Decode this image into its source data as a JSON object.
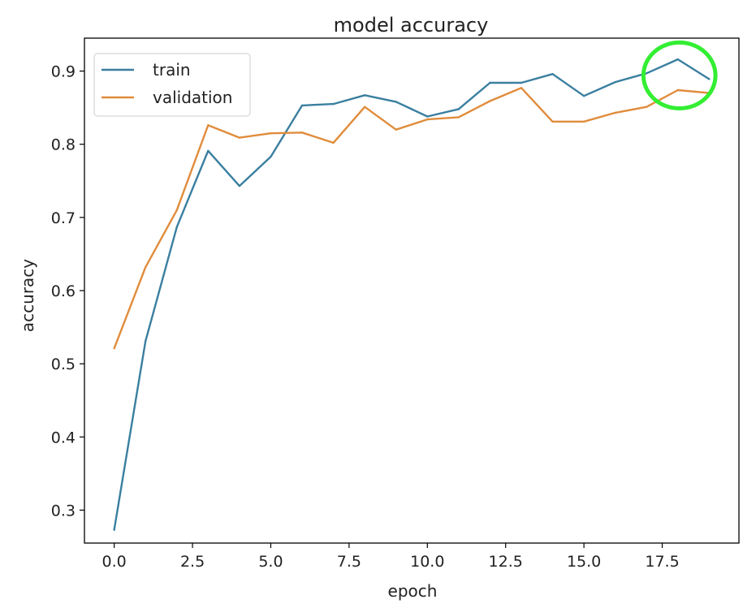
{
  "chart_data": {
    "type": "line",
    "title": "model accuracy",
    "xlabel": "epoch",
    "ylabel": "accuracy",
    "xlim": [
      -0.95,
      19.95
    ],
    "ylim": [
      0.255,
      0.945
    ],
    "x_ticks": [
      0.0,
      2.5,
      5.0,
      7.5,
      10.0,
      12.5,
      15.0,
      17.5
    ],
    "x_tick_labels": [
      "0.0",
      "2.5",
      "5.0",
      "7.5",
      "10.0",
      "12.5",
      "15.0",
      "17.5"
    ],
    "y_ticks": [
      0.3,
      0.4,
      0.5,
      0.6,
      0.7,
      0.8,
      0.9
    ],
    "y_tick_labels": [
      "0.3",
      "0.4",
      "0.5",
      "0.6",
      "0.7",
      "0.8",
      "0.9"
    ],
    "legend_position": "top-left",
    "grid": false,
    "x": [
      0,
      1,
      2,
      3,
      4,
      5,
      6,
      7,
      8,
      9,
      10,
      11,
      12,
      13,
      14,
      15,
      16,
      17,
      18,
      19
    ],
    "series": [
      {
        "name": "train",
        "color": "#3a7fa0",
        "values": [
          0.273,
          0.531,
          0.687,
          0.791,
          0.743,
          0.783,
          0.853,
          0.855,
          0.867,
          0.858,
          0.838,
          0.848,
          0.884,
          0.884,
          0.896,
          0.866,
          0.885,
          0.897,
          0.916,
          0.889
        ]
      },
      {
        "name": "validation",
        "color": "#e08c3c",
        "values": [
          0.521,
          0.632,
          0.71,
          0.826,
          0.809,
          0.815,
          0.816,
          0.802,
          0.851,
          0.82,
          0.834,
          0.837,
          0.859,
          0.877,
          0.831,
          0.831,
          0.843,
          0.851,
          0.874,
          0.87
        ]
      }
    ],
    "annotation": {
      "shape": "ellipse",
      "color": "#33ee33",
      "center_data": [
        18.05,
        0.894
      ],
      "radius_data": [
        1.15,
        0.045
      ]
    }
  }
}
